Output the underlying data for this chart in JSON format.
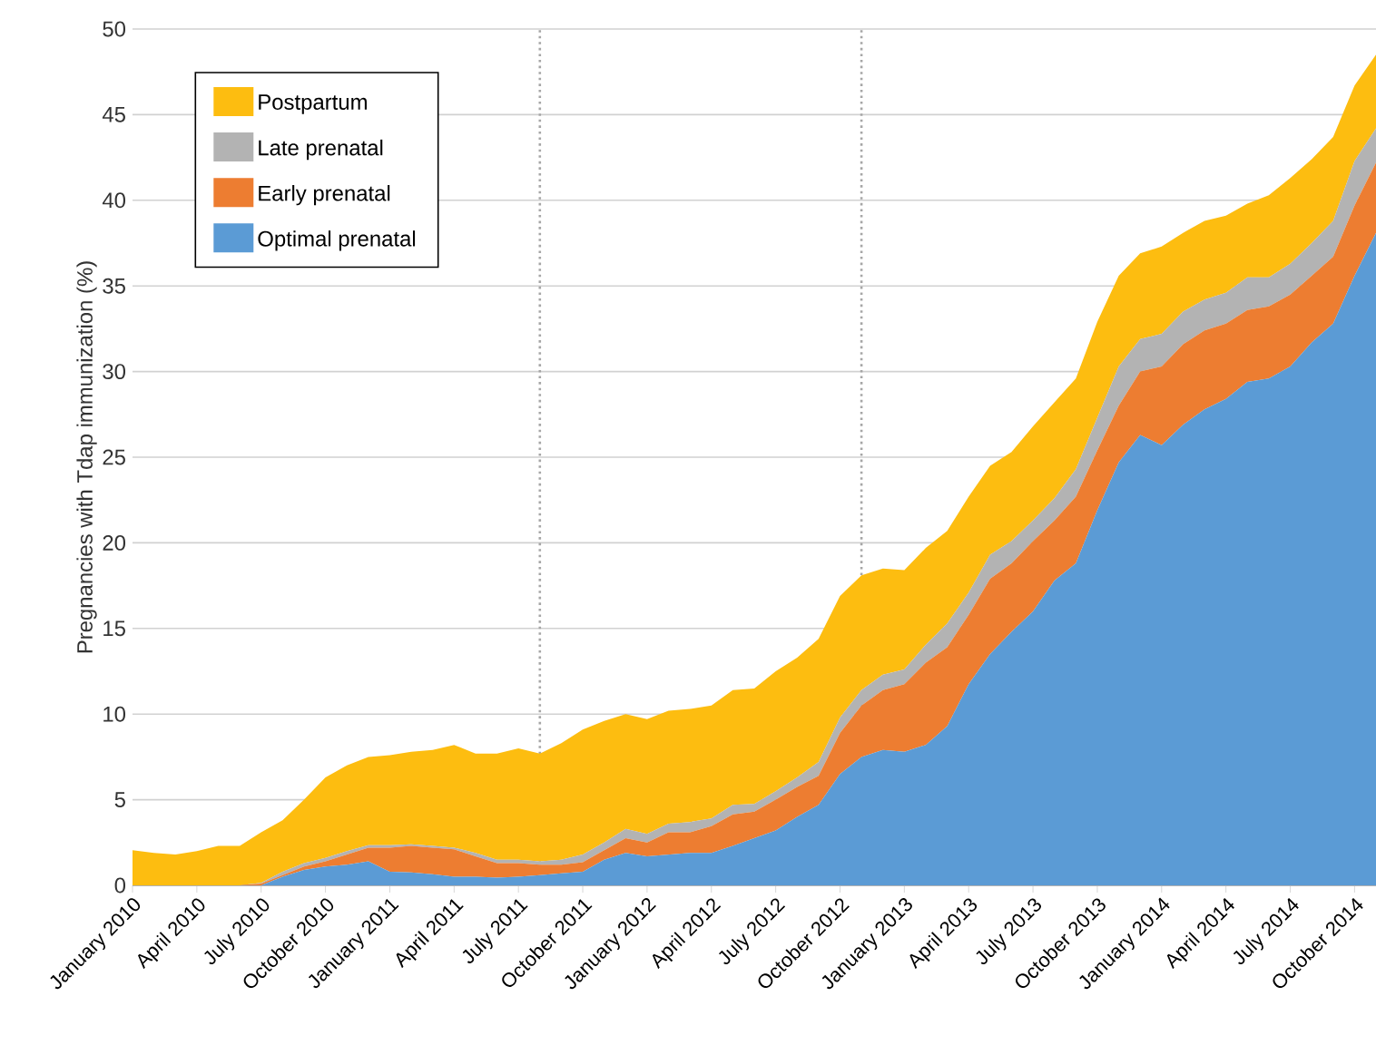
{
  "chart_data": {
    "type": "area",
    "stacked": true,
    "ylabel": "Pregnancies with Tdap immunization (%)",
    "x": [
      "2010-01",
      "2010-02",
      "2010-03",
      "2010-04",
      "2010-05",
      "2010-06",
      "2010-07",
      "2010-08",
      "2010-09",
      "2010-10",
      "2010-11",
      "2010-12",
      "2011-01",
      "2011-02",
      "2011-03",
      "2011-04",
      "2011-05",
      "2011-06",
      "2011-07",
      "2011-08",
      "2011-09",
      "2011-10",
      "2011-11",
      "2011-12",
      "2012-01",
      "2012-02",
      "2012-03",
      "2012-04",
      "2012-05",
      "2012-06",
      "2012-07",
      "2012-08",
      "2012-09",
      "2012-10",
      "2012-11",
      "2012-12",
      "2013-01",
      "2013-02",
      "2013-03",
      "2013-04",
      "2013-05",
      "2013-06",
      "2013-07",
      "2013-08",
      "2013-09",
      "2013-10",
      "2013-11",
      "2013-12",
      "2014-01",
      "2014-02",
      "2014-03",
      "2014-04",
      "2014-05",
      "2014-06",
      "2014-07",
      "2014-08",
      "2014-09",
      "2014-10",
      "2014-11"
    ],
    "series": [
      {
        "name": "Optimal prenatal",
        "color": "#5b9bd5",
        "values": [
          0,
          0,
          0,
          0,
          0,
          0,
          0,
          0.5,
          0.9,
          1.1,
          1.2,
          1.4,
          0.8,
          0.75,
          0.65,
          0.5,
          0.5,
          0.45,
          0.5,
          0.6,
          0.7,
          0.8,
          1.5,
          1.9,
          1.7,
          1.8,
          1.9,
          1.9,
          2.3,
          2.75,
          3.2,
          4.0,
          4.7,
          6.5,
          7.5,
          7.9,
          7.8,
          8.2,
          9.3,
          11.75,
          13.5,
          14.8,
          16.0,
          17.8,
          18.8,
          21.9,
          24.7,
          26.3,
          25.7,
          26.9,
          27.8,
          28.4,
          29.4,
          29.6,
          30.3,
          31.7,
          32.8,
          35.6,
          38.1
        ]
      },
      {
        "name": "Early prenatal",
        "color": "#ed7d31",
        "values": [
          0,
          0,
          0,
          0,
          0,
          0,
          0.1,
          0.1,
          0.2,
          0.3,
          0.6,
          0.8,
          1.4,
          1.55,
          1.55,
          1.6,
          1.2,
          0.85,
          0.8,
          0.6,
          0.5,
          0.55,
          0.55,
          0.85,
          0.8,
          1.3,
          1.2,
          1.55,
          1.85,
          1.55,
          1.8,
          1.75,
          1.7,
          2.4,
          3.0,
          3.5,
          3.95,
          4.8,
          4.6,
          4.05,
          4.4,
          4.0,
          4.1,
          3.5,
          3.9,
          3.5,
          3.3,
          3.7,
          4.6,
          4.7,
          4.6,
          4.4,
          4.2,
          4.2,
          4.2,
          3.9,
          3.9,
          4.1,
          4.1
        ]
      },
      {
        "name": "Late prenatal",
        "color": "#b3b3b3",
        "values": [
          0,
          0,
          0,
          0,
          0,
          0,
          0.05,
          0.2,
          0.2,
          0.2,
          0.2,
          0.15,
          0.15,
          0.1,
          0.1,
          0.1,
          0.2,
          0.2,
          0.2,
          0.2,
          0.3,
          0.45,
          0.45,
          0.55,
          0.5,
          0.5,
          0.6,
          0.45,
          0.55,
          0.45,
          0.5,
          0.55,
          0.8,
          0.9,
          0.9,
          0.9,
          0.85,
          1.05,
          1.4,
          1.3,
          1.4,
          1.3,
          1.2,
          1.3,
          1.6,
          1.9,
          2.3,
          1.9,
          1.9,
          1.9,
          1.8,
          1.8,
          1.9,
          1.7,
          1.8,
          1.9,
          2.1,
          2.6,
          2.0
        ]
      },
      {
        "name": "Postpartum",
        "color": "#fdbd10",
        "values": [
          2.05,
          1.9,
          1.8,
          2.0,
          2.3,
          2.3,
          2.95,
          3.0,
          3.7,
          4.7,
          5.0,
          5.15,
          5.25,
          5.4,
          5.6,
          6.0,
          5.8,
          6.2,
          6.5,
          6.3,
          6.8,
          7.3,
          7.1,
          6.7,
          6.7,
          6.6,
          6.6,
          6.6,
          6.7,
          6.75,
          7.0,
          7.0,
          7.2,
          7.1,
          6.7,
          6.2,
          5.8,
          5.65,
          5.4,
          5.6,
          5.2,
          5.2,
          5.5,
          5.6,
          5.3,
          5.6,
          5.3,
          5.0,
          5.1,
          4.6,
          4.6,
          4.5,
          4.3,
          4.8,
          5.0,
          4.9,
          4.9,
          4.4,
          4.3
        ]
      }
    ],
    "xlim": [
      "2010-01",
      "2014-11"
    ],
    "xticks": [
      {
        "value": "2010-01",
        "label": "January 2010"
      },
      {
        "value": "2010-04",
        "label": "April 2010"
      },
      {
        "value": "2010-07",
        "label": "July 2010"
      },
      {
        "value": "2010-10",
        "label": "October 2010"
      },
      {
        "value": "2011-01",
        "label": "January 2011"
      },
      {
        "value": "2011-04",
        "label": "April 2011"
      },
      {
        "value": "2011-07",
        "label": "July 2011"
      },
      {
        "value": "2011-10",
        "label": "October 2011"
      },
      {
        "value": "2012-01",
        "label": "January 2012"
      },
      {
        "value": "2012-04",
        "label": "April 2012"
      },
      {
        "value": "2012-07",
        "label": "July 2012"
      },
      {
        "value": "2012-10",
        "label": "October 2012"
      },
      {
        "value": "2013-01",
        "label": "January 2013"
      },
      {
        "value": "2013-04",
        "label": "April 2013"
      },
      {
        "value": "2013-07",
        "label": "July 2013"
      },
      {
        "value": "2013-10",
        "label": "October 2013"
      },
      {
        "value": "2014-01",
        "label": "January 2014"
      },
      {
        "value": "2014-04",
        "label": "April 2014"
      },
      {
        "value": "2014-07",
        "label": "July 2014"
      },
      {
        "value": "2014-10",
        "label": "October 2014"
      }
    ],
    "ylim": [
      0,
      50
    ],
    "yticks": [
      0,
      5,
      10,
      15,
      20,
      25,
      30,
      35,
      40,
      45,
      50
    ],
    "ref_lines": [
      {
        "axis": "x",
        "value": "2011-08",
        "color": "#a6a6a6",
        "line_style": "dotted"
      },
      {
        "axis": "x",
        "value": "2012-11",
        "color": "#a6a6a6",
        "line_style": "dotted"
      }
    ],
    "grid": "y",
    "legend": "top left"
  }
}
